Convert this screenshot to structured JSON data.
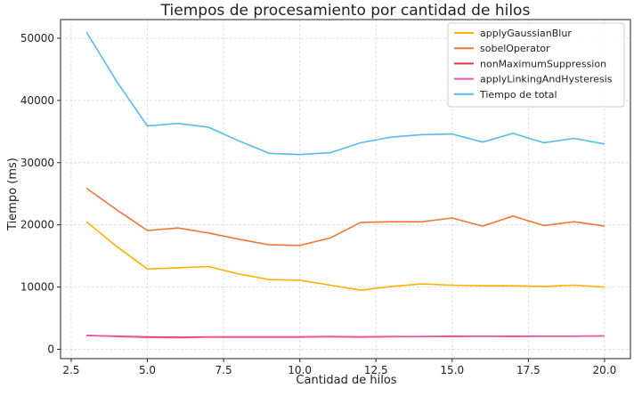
{
  "chart_data": {
    "type": "line",
    "title": "Tiempos de procesamiento por cantidad de hilos",
    "xlabel": "Cantidad de hilos",
    "ylabel": "Tiempo (ms)",
    "xlim": [
      2.15,
      20.85
    ],
    "ylim": [
      -1500,
      53000
    ],
    "xticks": [
      2.5,
      5.0,
      7.5,
      10.0,
      12.5,
      15.0,
      17.5,
      20.0
    ],
    "xtick_labels": [
      "2.5",
      "5.0",
      "7.5",
      "10.0",
      "12.5",
      "15.0",
      "17.5",
      "20.0"
    ],
    "yticks": [
      0,
      10000,
      20000,
      30000,
      40000,
      50000
    ],
    "ytick_labels": [
      "0",
      "10000",
      "20000",
      "30000",
      "40000",
      "50000"
    ],
    "grid": true,
    "legend_position": "top-right",
    "x": [
      3,
      4,
      5,
      6,
      7,
      8,
      9,
      10,
      11,
      12,
      13,
      14,
      15,
      16,
      17,
      18,
      19,
      20
    ],
    "series": [
      {
        "name": "applyGaussianBlur",
        "color": "#FFB000",
        "values": [
          20500,
          16500,
          12900,
          13100,
          13300,
          12100,
          11200,
          11100,
          10300,
          9500,
          10100,
          10500,
          10300,
          10200,
          10200,
          10100,
          10300,
          10000
        ]
      },
      {
        "name": "sobelOperator",
        "color": "#EE7733",
        "values": [
          25900,
          22400,
          19100,
          19500,
          18700,
          17700,
          16800,
          16700,
          17900,
          20400,
          20500,
          20500,
          21100,
          19800,
          21400,
          19900,
          20500,
          19800
        ]
      },
      {
        "name": "nonMaximumSuppression",
        "color": "#E8334A",
        "values": [
          2200,
          2100,
          2000,
          1950,
          2000,
          2000,
          2000,
          2000,
          2050,
          2000,
          2050,
          2050,
          2100,
          2100,
          2100,
          2100,
          2100,
          2150
        ]
      },
      {
        "name": "applyLinkingAndHysteresis",
        "color": "#EE55AA",
        "values": [
          2250,
          2050,
          1900,
          1850,
          1950,
          1950,
          1950,
          1950,
          2000,
          1950,
          2000,
          2050,
          2050,
          2100,
          2050,
          2100,
          2100,
          2150
        ]
      },
      {
        "name": "Tiempo de total",
        "color": "#55BBEE",
        "values": [
          51000,
          43000,
          35900,
          36300,
          35700,
          33500,
          31500,
          31300,
          31600,
          33200,
          34100,
          34500,
          34600,
          33300,
          34700,
          33200,
          33900,
          33000
        ]
      }
    ]
  }
}
